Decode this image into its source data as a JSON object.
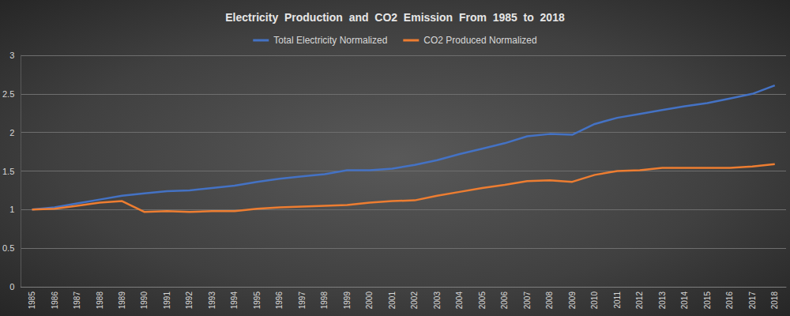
{
  "chart_data": {
    "type": "line",
    "title": "Electricity  Production  and  CO2  Emission  From  1985  to  2018",
    "categories": [
      "1985",
      "1986",
      "1987",
      "1988",
      "1989",
      "1990",
      "1991",
      "1992",
      "1993",
      "1994",
      "1995",
      "1996",
      "1997",
      "1998",
      "1999",
      "2000",
      "2001",
      "2002",
      "2003",
      "2004",
      "2005",
      "2006",
      "2007",
      "2008",
      "2009",
      "2010",
      "2011",
      "2012",
      "2013",
      "2014",
      "2015",
      "2016",
      "2017",
      "2018"
    ],
    "series": [
      {
        "name": "Total Electricity Normalized",
        "color": "#4472c4",
        "values": [
          1.0,
          1.03,
          1.08,
          1.13,
          1.18,
          1.21,
          1.24,
          1.25,
          1.28,
          1.31,
          1.36,
          1.4,
          1.43,
          1.46,
          1.51,
          1.51,
          1.53,
          1.58,
          1.64,
          1.72,
          1.79,
          1.86,
          1.95,
          1.98,
          1.97,
          2.11,
          2.19,
          2.24,
          2.29,
          2.34,
          2.38,
          2.44,
          2.5,
          2.61
        ]
      },
      {
        "name": "CO2 Produced Normalized",
        "color": "#ed7d31",
        "values": [
          1.0,
          1.01,
          1.05,
          1.09,
          1.11,
          0.97,
          0.98,
          0.97,
          0.98,
          0.98,
          1.01,
          1.03,
          1.04,
          1.05,
          1.06,
          1.09,
          1.11,
          1.12,
          1.18,
          1.23,
          1.28,
          1.32,
          1.37,
          1.38,
          1.36,
          1.45,
          1.5,
          1.51,
          1.54,
          1.54,
          1.54,
          1.54,
          1.56,
          1.59
        ]
      }
    ],
    "ylim": [
      0,
      3
    ],
    "yticks": [
      0,
      0.5,
      1,
      1.5,
      2,
      2.5,
      3
    ],
    "grid": true,
    "legend": "top"
  }
}
